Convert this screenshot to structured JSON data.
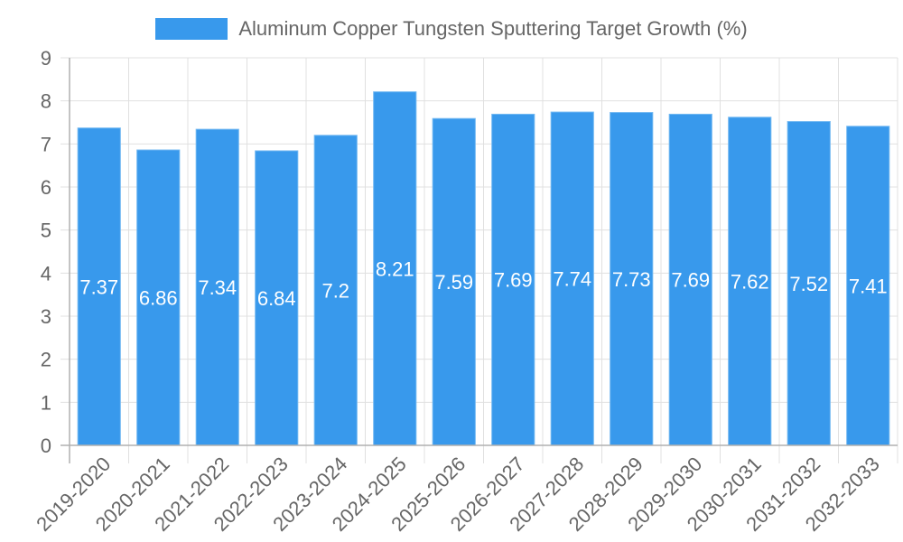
{
  "chart_data": {
    "type": "bar",
    "title": "",
    "legend": {
      "entries": [
        "Aluminum Copper Tungsten Sputtering Target Growth (%)"
      ],
      "position": "top"
    },
    "xlabel": "",
    "ylabel": "",
    "categories": [
      "2019-2020",
      "2020-2021",
      "2021-2022",
      "2022-2023",
      "2023-2024",
      "2024-2025",
      "2025-2026",
      "2026-2027",
      "2027-2028",
      "2028-2029",
      "2029-2030",
      "2030-2031",
      "2031-2032",
      "2032-2033"
    ],
    "series": [
      {
        "name": "Aluminum Copper Tungsten Sputtering Target Growth (%)",
        "values": [
          7.37,
          6.86,
          7.34,
          6.84,
          7.2,
          8.21,
          7.59,
          7.69,
          7.74,
          7.73,
          7.69,
          7.62,
          7.52,
          7.41
        ],
        "labels": [
          "7.37",
          "6.86",
          "7.34",
          "6.84",
          "7.2",
          "8.21",
          "7.59",
          "7.69",
          "7.74",
          "7.73",
          "7.69",
          "7.62",
          "7.52",
          "7.41"
        ],
        "color": "#3899ec"
      }
    ],
    "ylim": [
      0,
      9
    ],
    "yticks": [
      "0",
      "1",
      "2",
      "3",
      "4",
      "5",
      "6",
      "7",
      "8",
      "9"
    ],
    "grid": true,
    "x_tick_rotation": -45
  },
  "legend": {
    "label": "Aluminum Copper Tungsten Sputtering Target Growth (%)",
    "color": "#3899ec"
  },
  "colors": {
    "bar": "#3899ec",
    "bar_border": "#72b8f2",
    "grid": "#e0e0e0",
    "axis": "#b0b0b0",
    "tick_text": "#666666",
    "label_text": "#ffffff"
  }
}
